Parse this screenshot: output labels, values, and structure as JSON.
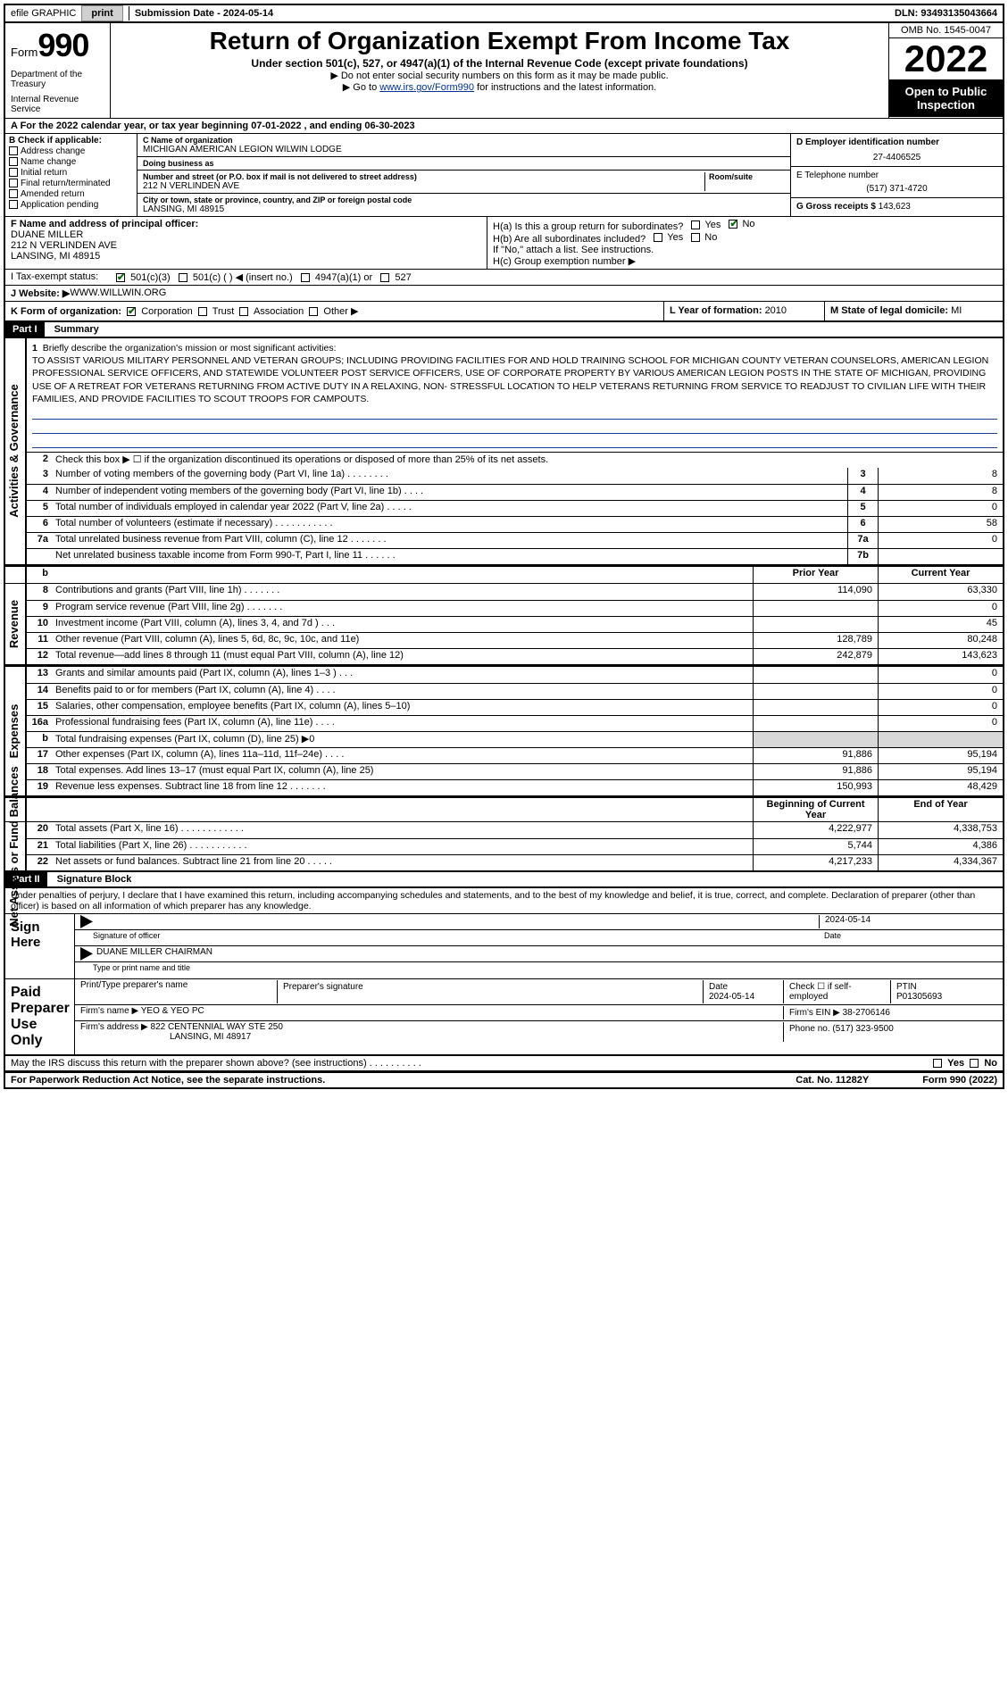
{
  "top": {
    "efile": "efile GRAPHIC",
    "print": "print",
    "sub_label": "Submission Date - ",
    "sub_date": "2024-05-14",
    "dln_label": "DLN: ",
    "dln": "93493135043664"
  },
  "hdr": {
    "form_word": "Form",
    "form_num": "990",
    "dept1": "Department of the Treasury",
    "dept2": "Internal Revenue Service",
    "title": "Return of Organization Exempt From Income Tax",
    "sub1": "Under section 501(c), 527, or 4947(a)(1) of the Internal Revenue Code (except private foundations)",
    "sub2": "▶ Do not enter social security numbers on this form as it may be made public.",
    "sub3_pre": "▶ Go to ",
    "sub3_link": "www.irs.gov/Form990",
    "sub3_post": " for instructions and the latest information.",
    "omb": "OMB No. 1545-0047",
    "year": "2022",
    "open": "Open to Public Inspection"
  },
  "rowA": "A  For the 2022 calendar year, or tax year beginning 07-01-2022   , and ending 06-30-2023",
  "colB": {
    "hdr": "B Check if applicable:",
    "i1": "Address change",
    "i2": "Name change",
    "i3": "Initial return",
    "i4": "Final return/terminated",
    "i5": "Amended return",
    "i6": "Application pending"
  },
  "colC": {
    "name_lbl": "C Name of organization",
    "name": "MICHIGAN AMERICAN LEGION WILWIN LODGE",
    "dba_lbl": "Doing business as",
    "street_lbl": "Number and street (or P.O. box if mail is not delivered to street address)",
    "room_lbl": "Room/suite",
    "street": "212 N VERLINDEN AVE",
    "city_lbl": "City or town, state or province, country, and ZIP or foreign postal code",
    "city": "LANSING, MI  48915"
  },
  "colD": {
    "d_lbl": "D Employer identification number",
    "d_val": "27-4406525",
    "e_lbl": "E Telephone number",
    "e_val": "(517) 371-4720",
    "g_lbl": "G Gross receipts $ ",
    "g_val": "143,623"
  },
  "rowF": {
    "f_lbl": "F  Name and address of principal officer:",
    "f_name": "DUANE MILLER",
    "f_addr1": "212 N VERLINDEN AVE",
    "f_addr2": "LANSING, MI  48915",
    "ha": "H(a)  Is this a group return for subordinates?",
    "hb": "H(b)  Are all subordinates included?",
    "hb_note": "If \"No,\" attach a list. See instructions.",
    "hc": "H(c)  Group exemption number ▶",
    "yes": "Yes",
    "no": "No"
  },
  "rowI": {
    "lbl": "I   Tax-exempt status:",
    "o1": "501(c)(3)",
    "o2": "501(c) (  )  ◀ (insert no.)",
    "o3": "4947(a)(1) or",
    "o4": "527"
  },
  "rowJ": {
    "lbl": "J   Website: ▶ ",
    "val": "WWW.WILLWIN.ORG"
  },
  "rowK": {
    "k": "K Form of organization:",
    "k1": "Corporation",
    "k2": "Trust",
    "k3": "Association",
    "k4": "Other ▶",
    "l": "L Year of formation: ",
    "l_val": "2010",
    "m": "M State of legal domicile: ",
    "m_val": "MI"
  },
  "parts": {
    "p1": "Part I",
    "p1t": "Summary",
    "p2": "Part II",
    "p2t": "Signature Block"
  },
  "s1": {
    "l1": "Briefly describe the organization's mission or most significant activities:",
    "mission": "TO ASSIST VARIOUS MILITARY PERSONNEL AND VETERAN GROUPS; INCLUDING PROVIDING FACILITIES FOR AND HOLD TRAINING SCHOOL FOR MICHIGAN COUNTY VETERAN COUNSELORS, AMERICAN LEGION PROFESSIONAL SERVICE OFFICERS, AND STATEWIDE VOLUNTEER POST SERVICE OFFICERS, USE OF CORPORATE PROPERTY BY VARIOUS AMERICAN LEGION POSTS IN THE STATE OF MICHIGAN, PROVIDING USE OF A RETREAT FOR VETERANS RETURNING FROM ACTIVE DUTY IN A RELAXING, NON- STRESSFUL LOCATION TO HELP VETERANS RETURNING FROM SERVICE TO READJUST TO CIVILIAN LIFE WITH THEIR FAMILIES, AND PROVIDE FACILITIES TO SCOUT TROOPS FOR CAMPOUTS.",
    "l2": "Check this box ▶ ☐ if the organization discontinued its operations or disposed of more than 25% of its net assets.",
    "rows": [
      {
        "n": "3",
        "t": "Number of voting members of the governing body (Part VI, line 1a)  .  .  .  .  .  .  .  .",
        "b": "3",
        "v": "8"
      },
      {
        "n": "4",
        "t": "Number of independent voting members of the governing body (Part VI, line 1b)  .  .  .  .",
        "b": "4",
        "v": "8"
      },
      {
        "n": "5",
        "t": "Total number of individuals employed in calendar year 2022 (Part V, line 2a)  .  .  .  .  .",
        "b": "5",
        "v": "0"
      },
      {
        "n": "6",
        "t": "Total number of volunteers (estimate if necessary)  .  .  .  .  .  .  .  .  .  .  .",
        "b": "6",
        "v": "58"
      },
      {
        "n": "7a",
        "t": "Total unrelated business revenue from Part VIII, column (C), line 12  .  .  .  .  .  .  .",
        "b": "7a",
        "v": "0"
      },
      {
        "n": "",
        "t": "Net unrelated business taxable income from Form 990-T, Part I, line 11  .  .  .  .  .  .",
        "b": "7b",
        "v": ""
      }
    ]
  },
  "yrhdr": {
    "prior": "Prior Year",
    "curr": "Current Year"
  },
  "rev": [
    {
      "n": "8",
      "t": "Contributions and grants (Part VIII, line 1h)  .  .  .  .  .  .  .",
      "p": "114,090",
      "c": "63,330"
    },
    {
      "n": "9",
      "t": "Program service revenue (Part VIII, line 2g)  .  .  .  .  .  .  .",
      "p": "",
      "c": "0"
    },
    {
      "n": "10",
      "t": "Investment income (Part VIII, column (A), lines 3, 4, and 7d )  .  .  .",
      "p": "",
      "c": "45"
    },
    {
      "n": "11",
      "t": "Other revenue (Part VIII, column (A), lines 5, 6d, 8c, 9c, 10c, and 11e)",
      "p": "128,789",
      "c": "80,248"
    },
    {
      "n": "12",
      "t": "Total revenue—add lines 8 through 11 (must equal Part VIII, column (A), line 12)",
      "p": "242,879",
      "c": "143,623"
    }
  ],
  "exp": [
    {
      "n": "13",
      "t": "Grants and similar amounts paid (Part IX, column (A), lines 1–3 )  .  .  .",
      "p": "",
      "c": "0"
    },
    {
      "n": "14",
      "t": "Benefits paid to or for members (Part IX, column (A), line 4)  .  .  .  .",
      "p": "",
      "c": "0"
    },
    {
      "n": "15",
      "t": "Salaries, other compensation, employee benefits (Part IX, column (A), lines 5–10)",
      "p": "",
      "c": "0"
    },
    {
      "n": "16a",
      "t": "Professional fundraising fees (Part IX, column (A), line 11e)  .  .  .  .",
      "p": "",
      "c": "0"
    },
    {
      "n": "b",
      "t": "Total fundraising expenses (Part IX, column (D), line 25) ▶0",
      "p": "shade",
      "c": "shade"
    },
    {
      "n": "17",
      "t": "Other expenses (Part IX, column (A), lines 11a–11d, 11f–24e)  .  .  .  .",
      "p": "91,886",
      "c": "95,194"
    },
    {
      "n": "18",
      "t": "Total expenses. Add lines 13–17 (must equal Part IX, column (A), line 25)",
      "p": "91,886",
      "c": "95,194"
    },
    {
      "n": "19",
      "t": "Revenue less expenses. Subtract line 18 from line 12  .  .  .  .  .  .  .",
      "p": "150,993",
      "c": "48,429"
    }
  ],
  "bal_hdr": {
    "beg": "Beginning of Current Year",
    "end": "End of Year"
  },
  "bal": [
    {
      "n": "20",
      "t": "Total assets (Part X, line 16)  .  .  .  .  .  .  .  .  .  .  .  .",
      "p": "4,222,977",
      "c": "4,338,753"
    },
    {
      "n": "21",
      "t": "Total liabilities (Part X, line 26)  .  .  .  .  .  .  .  .  .  .  .",
      "p": "5,744",
      "c": "4,386"
    },
    {
      "n": "22",
      "t": "Net assets or fund balances. Subtract line 21 from line 20  .  .  .  .  .",
      "p": "4,217,233",
      "c": "4,334,367"
    }
  ],
  "sides": {
    "ag": "Activities & Governance",
    "rev": "Revenue",
    "exp": "Expenses",
    "bal": "Net Assets or Fund Balances"
  },
  "sig": {
    "perjury": "Under penalties of perjury, I declare that I have examined this return, including accompanying schedules and statements, and to the best of my knowledge and belief, it is true, correct, and complete. Declaration of preparer (other than officer) is based on all information of which preparer has any knowledge.",
    "sign_here": "Sign Here",
    "sig_officer": "Signature of officer",
    "sig_date": "2024-05-14",
    "date_lbl": "Date",
    "name_title": "DUANE MILLER  CHAIRMAN",
    "name_title_lbl": "Type or print name and title",
    "paid": "Paid Preparer Use Only",
    "pt_name_lbl": "Print/Type preparer's name",
    "pt_sig_lbl": "Preparer's signature",
    "pt_date_lbl": "Date",
    "pt_date": "2024-05-14",
    "pt_check": "Check ☐ if self-employed",
    "ptin_lbl": "PTIN",
    "ptin": "P01305693",
    "firm_name_lbl": "Firm's name   ▶ ",
    "firm_name": "YEO & YEO PC",
    "firm_ein_lbl": "Firm's EIN ▶ ",
    "firm_ein": "38-2706146",
    "firm_addr_lbl": "Firm's address ▶ ",
    "firm_addr": "822 CENTENNIAL WAY STE 250",
    "firm_city": "LANSING, MI  48917",
    "phone_lbl": "Phone no. ",
    "phone": "(517) 323-9500",
    "may_irs": "May the IRS discuss this return with the preparer shown above? (see instructions)  .  .  .  .  .  .  .  .  .  ."
  },
  "footer": {
    "pra": "For Paperwork Reduction Act Notice, see the separate instructions.",
    "cat": "Cat. No. 11282Y",
    "form": "Form 990 (2022)"
  }
}
